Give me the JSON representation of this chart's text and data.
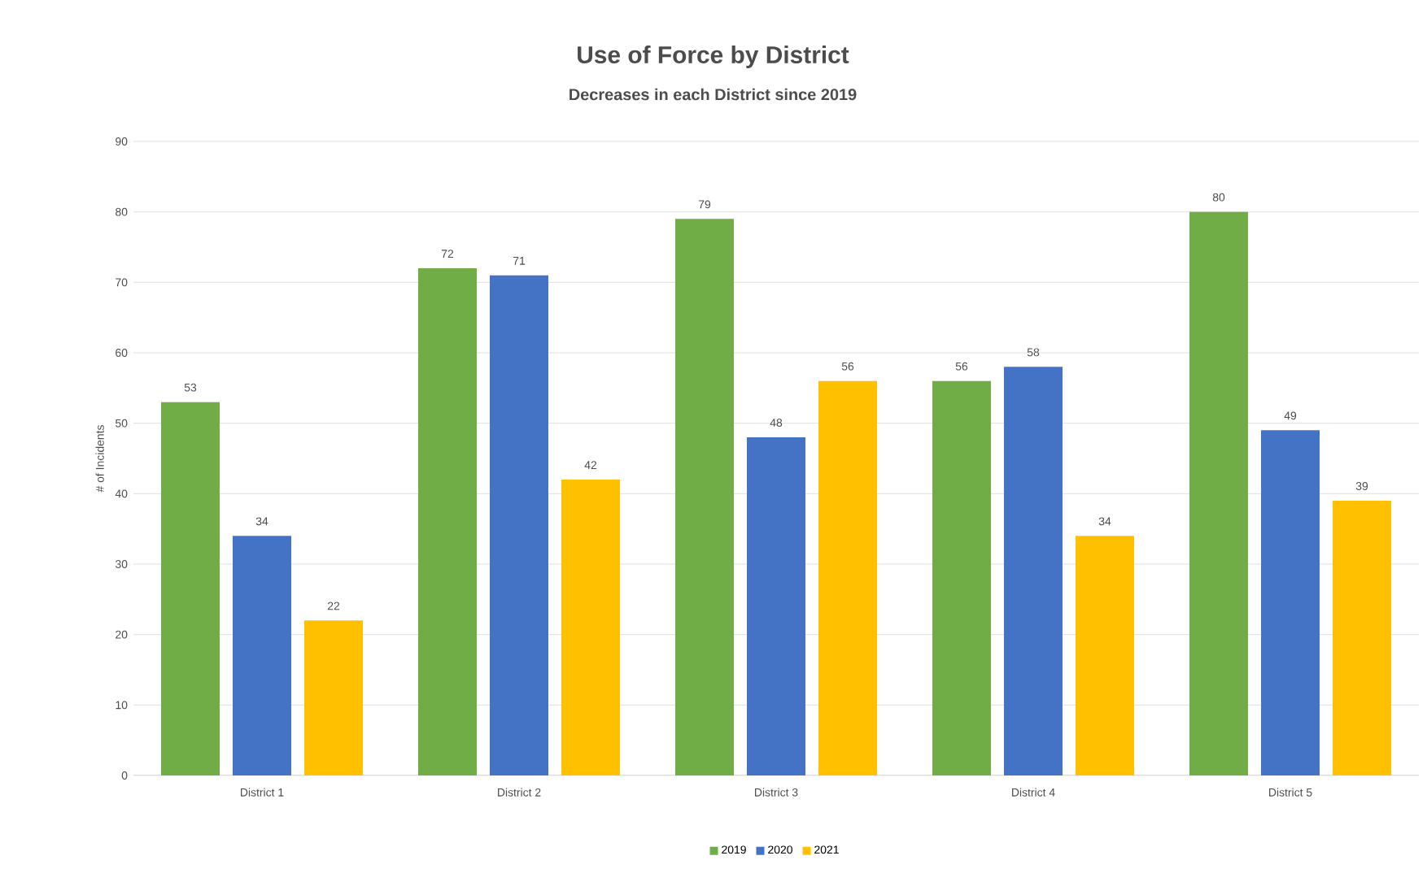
{
  "chart_data": {
    "type": "bar",
    "title": "Use of Force by District",
    "subtitle": "Decreases in each District since 2019",
    "ylabel": "# of Incidents",
    "categories": [
      "District 1",
      "District 2",
      "District 3",
      "District 4",
      "District 5"
    ],
    "series": [
      {
        "name": "2019",
        "color": "#70ad47",
        "values": [
          53,
          72,
          79,
          56,
          80
        ]
      },
      {
        "name": "2020",
        "color": "#4472c4",
        "values": [
          34,
          71,
          48,
          58,
          49
        ]
      },
      {
        "name": "2021",
        "color": "#ffc000",
        "values": [
          22,
          42,
          56,
          34,
          39
        ]
      }
    ],
    "ylim": [
      0,
      90
    ],
    "yticks": [
      0,
      10,
      20,
      30,
      40,
      50,
      60,
      70,
      80,
      90
    ],
    "grid": "y",
    "legend": "bottom",
    "data_labels": true
  }
}
